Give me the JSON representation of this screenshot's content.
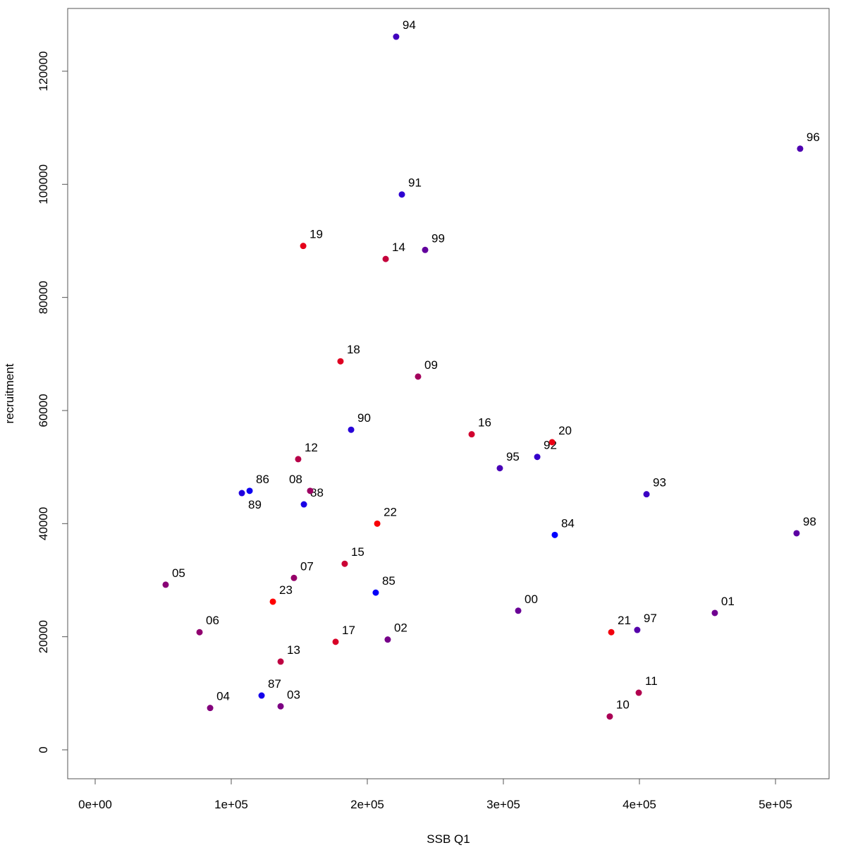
{
  "chart_data": {
    "type": "scatter",
    "title": "",
    "xlabel": "SSB Q1",
    "ylabel": "recruitment",
    "xlim": [
      -20000,
      540000
    ],
    "ylim": [
      -5000,
      131000
    ],
    "x_ticks": [
      0,
      100000,
      200000,
      300000,
      400000,
      500000
    ],
    "x_tick_labels": [
      "0e+00",
      "1e+05",
      "2e+05",
      "3e+05",
      "4e+05",
      "5e+05"
    ],
    "y_ticks": [
      0,
      20000,
      40000,
      60000,
      80000,
      100000,
      120000
    ],
    "y_tick_labels": [
      "0",
      "20000",
      "40000",
      "60000",
      "80000",
      "100000",
      "120000"
    ],
    "grid": false,
    "color_start": "#0000FF",
    "color_end": "#FF0000",
    "points": [
      {
        "label": "84",
        "x": 337800,
        "y": 38000
      },
      {
        "label": "85",
        "x": 206200,
        "y": 27800
      },
      {
        "label": "86",
        "x": 113500,
        "y": 45800
      },
      {
        "label": "87",
        "x": 122300,
        "y": 9600
      },
      {
        "label": "88",
        "x": 153400,
        "y": 43400
      },
      {
        "label": "89",
        "x": 107800,
        "y": 45400
      },
      {
        "label": "90",
        "x": 188100,
        "y": 56600
      },
      {
        "label": "91",
        "x": 225400,
        "y": 98200
      },
      {
        "label": "92",
        "x": 324900,
        "y": 51800
      },
      {
        "label": "93",
        "x": 405200,
        "y": 45200
      },
      {
        "label": "94",
        "x": 221200,
        "y": 126100
      },
      {
        "label": "95",
        "x": 297400,
        "y": 49800
      },
      {
        "label": "96",
        "x": 518100,
        "y": 106300
      },
      {
        "label": "97",
        "x": 398400,
        "y": 21200
      },
      {
        "label": "98",
        "x": 515500,
        "y": 38300
      },
      {
        "label": "99",
        "x": 242500,
        "y": 88400
      },
      {
        "label": "00",
        "x": 310900,
        "y": 24600
      },
      {
        "label": "01",
        "x": 455400,
        "y": 24200
      },
      {
        "label": "02",
        "x": 215000,
        "y": 19500
      },
      {
        "label": "03",
        "x": 136300,
        "y": 7700
      },
      {
        "label": "04",
        "x": 84500,
        "y": 7400
      },
      {
        "label": "05",
        "x": 51800,
        "y": 29200
      },
      {
        "label": "06",
        "x": 76700,
        "y": 20800
      },
      {
        "label": "07",
        "x": 146100,
        "y": 30400
      },
      {
        "label": "08",
        "x": 158000,
        "y": 45800
      },
      {
        "label": "09",
        "x": 237300,
        "y": 66000
      },
      {
        "label": "10",
        "x": 378200,
        "y": 5900
      },
      {
        "label": "11",
        "x": 399500,
        "y": 10100
      },
      {
        "label": "12",
        "x": 149200,
        "y": 51400
      },
      {
        "label": "13",
        "x": 136300,
        "y": 15600
      },
      {
        "label": "14",
        "x": 213500,
        "y": 86800
      },
      {
        "label": "15",
        "x": 183400,
        "y": 32900
      },
      {
        "label": "16",
        "x": 276700,
        "y": 55800
      },
      {
        "label": "17",
        "x": 176700,
        "y": 19100
      },
      {
        "label": "18",
        "x": 180300,
        "y": 68700
      },
      {
        "label": "19",
        "x": 152900,
        "y": 89100
      },
      {
        "label": "20",
        "x": 335800,
        "y": 54400
      },
      {
        "label": "21",
        "x": 379300,
        "y": 20800
      },
      {
        "label": "22",
        "x": 207300,
        "y": 40000
      },
      {
        "label": "23",
        "x": 130600,
        "y": 26200
      }
    ]
  }
}
